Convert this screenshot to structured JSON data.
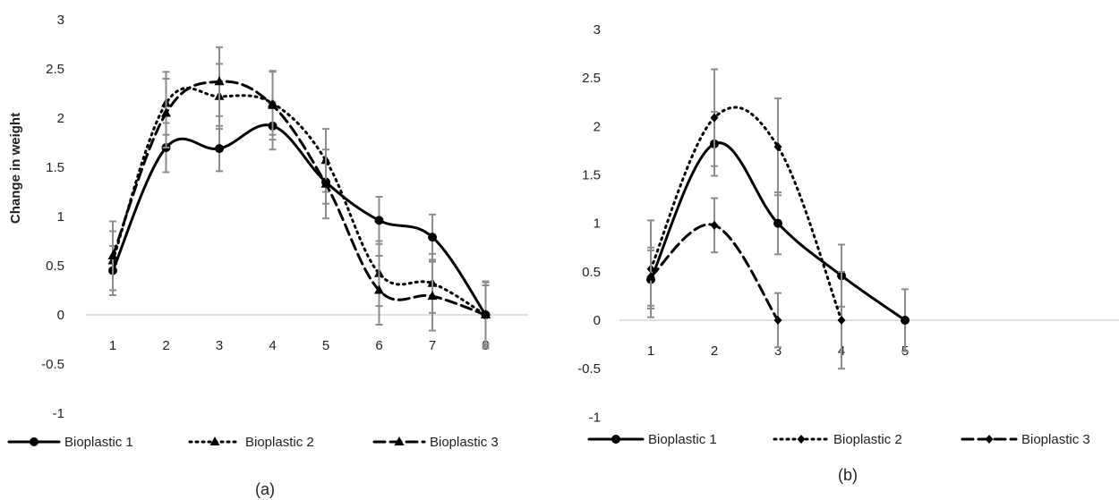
{
  "chart_data": [
    {
      "type": "line",
      "title": "",
      "caption": "(a)",
      "xlabel": "",
      "ylabel": "Change in weight",
      "ylim": [
        -1,
        3
      ],
      "yticks": [
        "-1",
        "-0.5",
        "0",
        "0.5",
        "1",
        "1.5",
        "2",
        "2.5",
        "3"
      ],
      "x": [
        1,
        2,
        3,
        4,
        5,
        6,
        7,
        8
      ],
      "xtick_labels": [
        "1",
        "2",
        "3",
        "4",
        "5",
        "6",
        "7",
        "8"
      ],
      "grid": false,
      "legend_position": "bottom",
      "series": [
        {
          "name": "Bioplastic 1",
          "style": "solid",
          "marker": "circle",
          "values": [
            0.45,
            1.7,
            1.69,
            1.92,
            1.35,
            0.96,
            0.79,
            0.0
          ],
          "errors": [
            0.25,
            0.25,
            0.23,
            0.24,
            0.22,
            0.24,
            0.23,
            0.34
          ]
        },
        {
          "name": "Bioplastic 2",
          "style": "dotted",
          "marker": "triangle",
          "values": [
            0.55,
            2.15,
            2.22,
            2.15,
            1.57,
            0.42,
            0.32,
            0.0
          ],
          "errors": [
            0.3,
            0.32,
            0.33,
            0.32,
            0.32,
            0.33,
            0.3,
            0.33
          ]
        },
        {
          "name": "Bioplastic 3",
          "style": "dashed",
          "marker": "triangle",
          "values": [
            0.6,
            2.05,
            2.37,
            2.13,
            1.33,
            0.25,
            0.19,
            0.0
          ],
          "errors": [
            0.35,
            0.35,
            0.35,
            0.35,
            0.35,
            0.35,
            0.35,
            0.3
          ]
        }
      ]
    },
    {
      "type": "line",
      "title": "",
      "caption": "(b)",
      "xlabel": "",
      "ylabel": "",
      "ylim": [
        -1,
        3
      ],
      "yticks": [
        "-1",
        "-0.5",
        "0",
        "0.5",
        "1",
        "1.5",
        "2",
        "2.5",
        "3"
      ],
      "x": [
        1,
        2,
        3,
        4,
        5
      ],
      "xtick_labels": [
        "1",
        "2",
        "3",
        "4",
        "5"
      ],
      "grid": false,
      "legend_position": "bottom",
      "series": [
        {
          "name": "Bioplastic 1",
          "style": "solid",
          "marker": "circle",
          "x": [
            1,
            2,
            3,
            4,
            5
          ],
          "values": [
            0.42,
            1.82,
            1.0,
            0.46,
            0.0
          ],
          "errors": [
            0.3,
            0.33,
            0.32,
            0.32,
            0.32
          ]
        },
        {
          "name": "Bioplastic 2",
          "style": "dotted",
          "marker": "diamond",
          "x": [
            1,
            2,
            3,
            4
          ],
          "values": [
            0.53,
            2.09,
            1.79,
            0.0
          ],
          "errors": [
            0.5,
            0.5,
            0.5,
            0.5
          ]
        },
        {
          "name": "Bioplastic 3",
          "style": "dashed",
          "marker": "diamond",
          "x": [
            1,
            2,
            3
          ],
          "values": [
            0.45,
            0.98,
            0.0
          ],
          "errors": [
            0.3,
            0.28,
            0.28
          ]
        }
      ]
    }
  ]
}
